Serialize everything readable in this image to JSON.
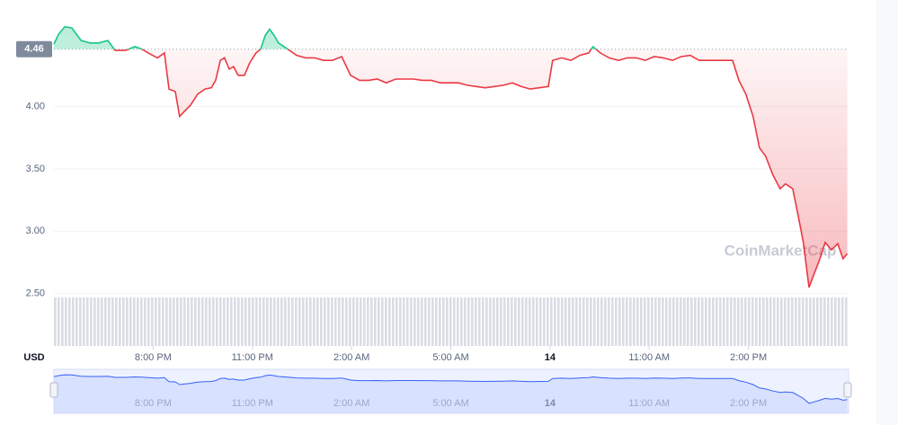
{
  "chart_data": {
    "type": "line",
    "baseline": 4.46,
    "currency_label": "USD",
    "watermark": "CoinMarketCap",
    "colors": {
      "above": "#16c784",
      "below": "#ea3943",
      "navigator": "#3861fb"
    },
    "grid": true,
    "xlim": [
      0,
      24
    ],
    "xticks": [
      {
        "value": 3,
        "label": "8:00 PM"
      },
      {
        "value": 6,
        "label": "11:00 PM"
      },
      {
        "value": 9,
        "label": "2:00 AM"
      },
      {
        "value": 12,
        "label": "5:00 AM"
      },
      {
        "value": 15,
        "label": "14"
      },
      {
        "value": 18,
        "label": "11:00 AM"
      },
      {
        "value": 21,
        "label": "2:00 PM"
      }
    ],
    "ylim": [
      2.08,
      4.71
    ],
    "yticks": [
      {
        "value": 2.5,
        "label": "2.50"
      },
      {
        "value": 3,
        "label": "3.00"
      },
      {
        "value": 3.5,
        "label": "3.50"
      },
      {
        "value": 4,
        "label": "4.00"
      }
    ],
    "x": [
      0,
      0.14,
      0.33,
      0.54,
      0.82,
      1.09,
      1.36,
      1.63,
      1.85,
      2.17,
      2.45,
      2.66,
      2.85,
      3.13,
      3.34,
      3.48,
      3.67,
      3.8,
      3.94,
      4.13,
      4.35,
      4.57,
      4.76,
      4.89,
      5.03,
      5.16,
      5.3,
      5.43,
      5.57,
      5.76,
      5.92,
      6.11,
      6.25,
      6.39,
      6.52,
      6.66,
      6.79,
      7.07,
      7.34,
      7.61,
      7.88,
      8.15,
      8.42,
      8.7,
      8.97,
      9.24,
      9.51,
      9.78,
      10.05,
      10.33,
      10.6,
      10.87,
      11.14,
      11.41,
      11.68,
      11.96,
      12.23,
      12.5,
      12.77,
      13.04,
      13.32,
      13.59,
      13.86,
      14.13,
      14.4,
      14.67,
      14.95,
      15.08,
      15.35,
      15.63,
      15.9,
      16.17,
      16.3,
      16.52,
      16.79,
      17.07,
      17.34,
      17.61,
      17.88,
      18.15,
      18.42,
      18.7,
      18.97,
      19.24,
      19.51,
      19.78,
      20.05,
      20.33,
      20.52,
      20.71,
      20.92,
      21.14,
      21.33,
      21.52,
      21.74,
      21.96,
      22.12,
      22.34,
      22.5,
      22.66,
      22.83,
      22.99,
      23.15,
      23.32,
      23.51,
      23.7,
      23.86,
      23.99
    ],
    "values": [
      4.5,
      4.58,
      4.64,
      4.63,
      4.53,
      4.51,
      4.51,
      4.53,
      4.45,
      4.45,
      4.48,
      4.46,
      4.43,
      4.39,
      4.43,
      4.14,
      4.12,
      3.92,
      3.96,
      4.01,
      4.1,
      4.14,
      4.15,
      4.21,
      4.37,
      4.39,
      4.3,
      4.32,
      4.25,
      4.25,
      4.35,
      4.43,
      4.46,
      4.57,
      4.62,
      4.57,
      4.51,
      4.46,
      4.41,
      4.39,
      4.39,
      4.37,
      4.37,
      4.4,
      4.25,
      4.21,
      4.21,
      4.22,
      4.19,
      4.22,
      4.22,
      4.22,
      4.21,
      4.21,
      4.19,
      4.19,
      4.19,
      4.17,
      4.16,
      4.15,
      4.16,
      4.17,
      4.19,
      4.16,
      4.14,
      4.15,
      4.16,
      4.37,
      4.39,
      4.37,
      4.41,
      4.43,
      4.48,
      4.43,
      4.39,
      4.37,
      4.39,
      4.39,
      4.37,
      4.4,
      4.39,
      4.37,
      4.4,
      4.41,
      4.37,
      4.37,
      4.37,
      4.37,
      4.37,
      4.21,
      4.1,
      3.92,
      3.67,
      3.6,
      3.45,
      3.34,
      3.38,
      3.34,
      3.13,
      2.91,
      2.55,
      2.66,
      2.77,
      2.91,
      2.85,
      2.9,
      2.78,
      2.82
    ]
  }
}
